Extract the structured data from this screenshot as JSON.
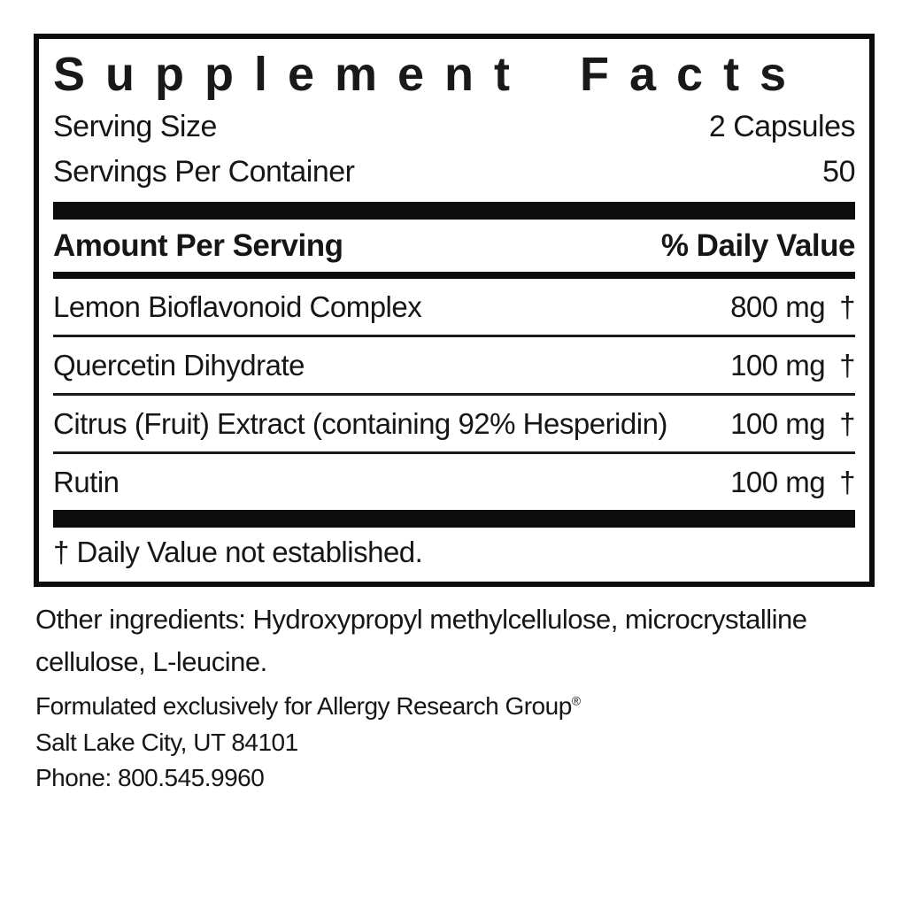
{
  "label": {
    "title": "Supplement Facts",
    "serving": [
      {
        "name": "Serving Size",
        "value": "2 Capsules"
      },
      {
        "name": "Servings Per Container",
        "value": "50"
      }
    ],
    "columns": {
      "left": "Amount Per Serving",
      "right": "% Daily Value"
    },
    "rows": [
      {
        "name": "Lemon Bioflavonoid Complex",
        "amount": "800 mg",
        "daily_value": "†"
      },
      {
        "name": "Quercetin Dihydrate",
        "amount": "100 mg",
        "daily_value": "†"
      },
      {
        "name": "Citrus (Fruit) Extract (containing 92% Hesperidin)",
        "amount": "100 mg",
        "daily_value": "†"
      },
      {
        "name": "Rutin",
        "amount": "100 mg",
        "daily_value": "†"
      }
    ],
    "footnote": "† Daily Value not established."
  },
  "other_ingredients": "Other ingredients: Hydroxypropyl methylcellulose, microcrystalline\ncellulose, L-leucine.",
  "manufacturer": {
    "line1": "Formulated exclusively for Allergy Research Group",
    "registered_mark": "®",
    "line2": "Salt Lake City, UT 84101",
    "line3": "Phone: 800.545.9960"
  },
  "colors": {
    "text": "#161616",
    "bars_and_border": "#0d0d0d",
    "background": "#ffffff"
  }
}
